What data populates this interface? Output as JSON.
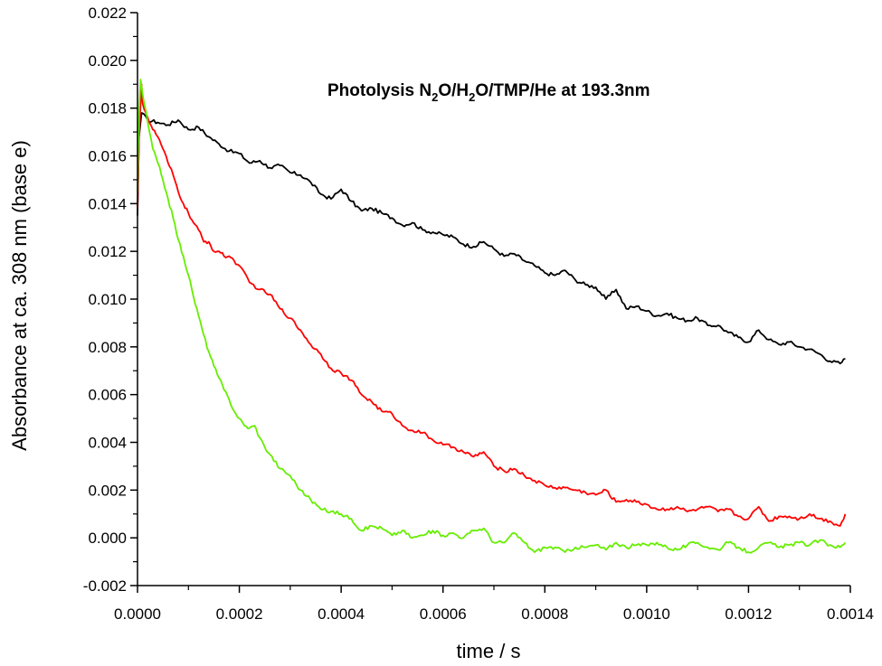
{
  "chart_data": {
    "type": "line",
    "title_parts": [
      {
        "text": "Photolysis N",
        "sub": false
      },
      {
        "text": "2",
        "sub": true
      },
      {
        "text": "O/H",
        "sub": false
      },
      {
        "text": "2",
        "sub": true
      },
      {
        "text": "O/TMP/He at 193.3nm",
        "sub": false
      }
    ],
    "xlabel": "time / s",
    "ylabel": "Absorbance at ca. 308 nm (base e)",
    "xlim": [
      0.0,
      0.0014
    ],
    "ylim": [
      -0.002,
      0.022
    ],
    "xticks": [
      0.0,
      0.0002,
      0.0004,
      0.0006,
      0.0008,
      0.001,
      0.0012,
      0.0014
    ],
    "xtick_labels": [
      "0.0000",
      "0.0002",
      "0.0004",
      "0.0006",
      "0.0008",
      "0.0010",
      "0.0012",
      "0.0014"
    ],
    "yticks": [
      -0.002,
      0.0,
      0.002,
      0.004,
      0.006,
      0.008,
      0.01,
      0.012,
      0.014,
      0.016,
      0.018,
      0.02,
      0.022
    ],
    "ytick_labels": [
      "-0.002",
      "0.000",
      "0.002",
      "0.004",
      "0.006",
      "0.008",
      "0.010",
      "0.012",
      "0.014",
      "0.016",
      "0.018",
      "0.020",
      "0.022"
    ],
    "grid": false,
    "series": [
      {
        "color": "#000000",
        "x": [
          0.0,
          3e-06,
          8e-06,
          2e-05,
          4e-05,
          6e-05,
          8e-05,
          0.0001,
          0.00012,
          0.00014,
          0.00016,
          0.00018,
          0.0002,
          0.00022,
          0.00024,
          0.00026,
          0.00028,
          0.0003,
          0.00032,
          0.00034,
          0.00036,
          0.00038,
          0.0004,
          0.00042,
          0.00044,
          0.00046,
          0.00048,
          0.0005,
          0.00052,
          0.00054,
          0.00056,
          0.00058,
          0.0006,
          0.00062,
          0.00064,
          0.00066,
          0.00068,
          0.0007,
          0.00072,
          0.00074,
          0.00076,
          0.00078,
          0.0008,
          0.00082,
          0.00084,
          0.00086,
          0.00088,
          0.0009,
          0.00092,
          0.00094,
          0.00096,
          0.00098,
          0.001,
          0.00102,
          0.00104,
          0.00106,
          0.00108,
          0.0011,
          0.00112,
          0.00114,
          0.00116,
          0.00118,
          0.0012,
          0.00122,
          0.00124,
          0.00126,
          0.00128,
          0.0013,
          0.00132,
          0.00134,
          0.00136,
          0.00138,
          0.00139
        ],
        "y": [
          0.0135,
          0.0168,
          0.0178,
          0.0175,
          0.0174,
          0.0173,
          0.0175,
          0.0171,
          0.0172,
          0.0168,
          0.0165,
          0.0162,
          0.0161,
          0.0157,
          0.0158,
          0.0155,
          0.0156,
          0.0153,
          0.0152,
          0.0149,
          0.0144,
          0.0142,
          0.0146,
          0.0141,
          0.0137,
          0.0138,
          0.0136,
          0.0134,
          0.0131,
          0.0132,
          0.0129,
          0.0128,
          0.0127,
          0.0126,
          0.0123,
          0.0122,
          0.0124,
          0.0121,
          0.0118,
          0.0119,
          0.0116,
          0.0114,
          0.0111,
          0.011,
          0.0112,
          0.0108,
          0.0106,
          0.0105,
          0.01,
          0.0104,
          0.0096,
          0.0097,
          0.0095,
          0.0093,
          0.0094,
          0.0092,
          0.0091,
          0.0092,
          0.0089,
          0.0089,
          0.0086,
          0.0084,
          0.0082,
          0.0087,
          0.0083,
          0.0081,
          0.0082,
          0.008,
          0.0079,
          0.0077,
          0.0074,
          0.0073,
          0.0075
        ]
      },
      {
        "color": "#ff0000",
        "x": [
          0.0,
          3e-06,
          8e-06,
          1e-05,
          2e-05,
          3e-05,
          4e-05,
          5e-05,
          6e-05,
          7e-05,
          8e-05,
          9e-05,
          0.0001,
          0.00011,
          0.00012,
          0.00013,
          0.00014,
          0.00015,
          0.00016,
          0.00017,
          0.00018,
          0.00019,
          0.0002,
          0.00022,
          0.00024,
          0.00026,
          0.00028,
          0.0003,
          0.00032,
          0.00034,
          0.00036,
          0.00038,
          0.0004,
          0.00042,
          0.00044,
          0.00046,
          0.00048,
          0.0005,
          0.00052,
          0.00054,
          0.00056,
          0.00058,
          0.0006,
          0.00062,
          0.00064,
          0.00066,
          0.00068,
          0.0007,
          0.00072,
          0.00074,
          0.00076,
          0.00078,
          0.0008,
          0.00082,
          0.00084,
          0.00086,
          0.00088,
          0.0009,
          0.00092,
          0.00094,
          0.00096,
          0.00098,
          0.001,
          0.00102,
          0.00104,
          0.00106,
          0.00108,
          0.0011,
          0.00112,
          0.00114,
          0.00116,
          0.00118,
          0.0012,
          0.00122,
          0.00124,
          0.00126,
          0.00128,
          0.0013,
          0.00132,
          0.00134,
          0.00136,
          0.00138,
          0.00139
        ],
        "y": [
          0.0138,
          0.0168,
          0.019,
          0.0182,
          0.0176,
          0.0171,
          0.0168,
          0.0163,
          0.0157,
          0.0152,
          0.0145,
          0.014,
          0.0136,
          0.0132,
          0.0129,
          0.0124,
          0.0124,
          0.012,
          0.012,
          0.0118,
          0.0118,
          0.0116,
          0.0114,
          0.0107,
          0.0104,
          0.0102,
          0.0096,
          0.0092,
          0.0087,
          0.0081,
          0.0077,
          0.0071,
          0.0069,
          0.0066,
          0.006,
          0.0057,
          0.0053,
          0.0052,
          0.0047,
          0.0045,
          0.0044,
          0.0041,
          0.0039,
          0.0038,
          0.0036,
          0.0034,
          0.0036,
          0.003,
          0.0028,
          0.0029,
          0.0026,
          0.0024,
          0.0022,
          0.0021,
          0.0021,
          0.002,
          0.0019,
          0.0018,
          0.002,
          0.0015,
          0.0016,
          0.0015,
          0.0014,
          0.0012,
          0.0012,
          0.0013,
          0.0011,
          0.0012,
          0.0013,
          0.0011,
          0.0012,
          0.0009,
          0.0008,
          0.0013,
          0.0007,
          0.0009,
          0.0009,
          0.0008,
          0.001,
          0.0008,
          0.0007,
          0.0005,
          0.001
        ]
      },
      {
        "color": "#66ee00",
        "x": [
          0.0,
          3e-06,
          6e-06,
          1e-05,
          2e-05,
          3e-05,
          4e-05,
          5e-05,
          6e-05,
          7e-05,
          8e-05,
          9e-05,
          0.0001,
          0.00011,
          0.00012,
          0.00013,
          0.00014,
          0.00015,
          0.00016,
          0.00017,
          0.00018,
          0.00019,
          0.0002,
          0.00021,
          0.00022,
          0.00023,
          0.00024,
          0.00025,
          0.00026,
          0.00028,
          0.0003,
          0.00032,
          0.00034,
          0.00036,
          0.00038,
          0.0004,
          0.00042,
          0.00044,
          0.00046,
          0.00048,
          0.0005,
          0.00052,
          0.00054,
          0.00056,
          0.00058,
          0.0006,
          0.00062,
          0.00064,
          0.00066,
          0.00068,
          0.0007,
          0.00072,
          0.00074,
          0.00076,
          0.00078,
          0.0008,
          0.00082,
          0.00084,
          0.00086,
          0.00088,
          0.0009,
          0.00092,
          0.00094,
          0.00096,
          0.00098,
          0.001,
          0.00102,
          0.00104,
          0.00106,
          0.00108,
          0.0011,
          0.00112,
          0.00114,
          0.00116,
          0.00118,
          0.0012,
          0.00122,
          0.00124,
          0.00126,
          0.00128,
          0.0013,
          0.00132,
          0.00134,
          0.00136,
          0.00138,
          0.00139
        ],
        "y": [
          0.0145,
          0.0178,
          0.0192,
          0.0186,
          0.0174,
          0.0163,
          0.0157,
          0.015,
          0.0142,
          0.0134,
          0.0125,
          0.0118,
          0.011,
          0.0101,
          0.0093,
          0.0085,
          0.0078,
          0.0072,
          0.0067,
          0.0062,
          0.0058,
          0.0053,
          0.005,
          0.0047,
          0.0046,
          0.0047,
          0.0042,
          0.0038,
          0.0035,
          0.0029,
          0.0026,
          0.002,
          0.0016,
          0.0012,
          0.0011,
          0.001,
          0.0008,
          0.0003,
          0.0005,
          0.0004,
          0.0001,
          0.0003,
          0.0,
          0.0001,
          0.0003,
          0.0001,
          0.0002,
          0.0,
          0.0003,
          0.0004,
          -0.0002,
          -0.0002,
          0.0002,
          -0.0002,
          -0.0006,
          -0.0004,
          -0.0004,
          -0.0006,
          -0.0004,
          -0.0004,
          -0.0003,
          -0.0005,
          -0.0002,
          -0.0004,
          -0.0003,
          -0.0003,
          -0.0002,
          -0.0004,
          -0.0005,
          -0.0003,
          -0.0002,
          -0.0004,
          -0.0005,
          -0.0002,
          -0.0004,
          -0.0006,
          -0.0004,
          -0.0002,
          -0.0004,
          -0.0003,
          -0.0002,
          -0.0003,
          -0.0001,
          -0.0003,
          -0.0004,
          -0.0002
        ]
      }
    ]
  }
}
